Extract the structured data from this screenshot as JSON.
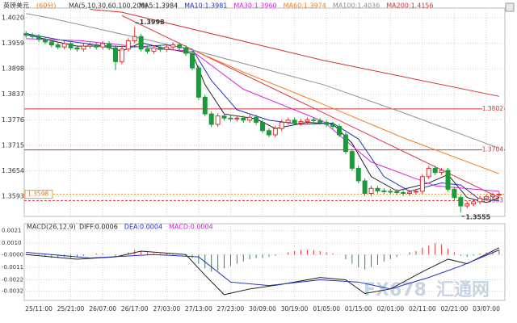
{
  "chart_data": {
    "type": "candlestick",
    "title": "英镑美元",
    "subtitle": "(60分)",
    "indicator": "MA(5,10,30,60,100,200)",
    "categories": [
      null,
      null,
      "25/11:00",
      null,
      null,
      null,
      null,
      "25/21:00",
      null,
      null,
      null,
      null,
      "26/07:00",
      null,
      null,
      null,
      null,
      "26/17:00",
      null,
      null,
      null,
      null,
      "27/03:00",
      null,
      null,
      null,
      null,
      "27/13:00",
      null,
      null,
      null,
      null,
      "27/23:00",
      null,
      null,
      null,
      null,
      "30/09:00",
      null,
      null,
      null,
      null,
      "30/19:00",
      null,
      null,
      null,
      null,
      "01/05:00",
      null,
      null,
      null,
      null,
      "01/15:00",
      null,
      null,
      null,
      null,
      "02/01:00",
      null,
      null,
      null,
      null,
      "02/11:00",
      null,
      null,
      null,
      null,
      "02/21:00",
      null,
      null,
      null,
      null,
      "03/07:00",
      null,
      null
    ],
    "open": [
      1.3982,
      1.3978,
      1.3975,
      1.3968,
      1.3962,
      1.3955,
      1.395,
      1.3958,
      1.3948,
      1.3945,
      1.3952,
      1.3955,
      1.395,
      1.3958,
      1.3948,
      1.3915,
      1.3945,
      1.3965,
      1.3975,
      1.3945,
      1.394,
      1.3948,
      1.3944,
      1.395,
      1.3955,
      1.3948,
      1.3935,
      1.39,
      1.383,
      1.379,
      1.3765,
      1.3785,
      1.378,
      1.3778,
      1.378,
      1.3775,
      1.3782,
      1.377,
      1.375,
      1.374,
      1.3755,
      1.377,
      1.3775,
      1.3768,
      1.3772,
      1.3776,
      1.3774,
      1.377,
      1.3765,
      1.376,
      1.374,
      1.37,
      1.366,
      1.363,
      1.36,
      1.3612,
      1.3606,
      1.3605,
      1.3604,
      1.3602,
      1.36,
      1.3603,
      1.3605,
      1.364,
      1.366,
      1.365,
      1.3655,
      1.361,
      1.359,
      1.357,
      1.3575,
      1.358,
      1.3588,
      1.3592,
      1.3596
    ],
    "high": [
      1.3988,
      1.3984,
      1.3981,
      1.3974,
      1.3968,
      1.3961,
      1.3964,
      1.3964,
      1.3954,
      1.3958,
      1.3961,
      1.3961,
      1.3964,
      1.3964,
      1.3954,
      1.3951,
      1.3971,
      1.3998,
      1.3981,
      1.3951,
      1.3954,
      1.3954,
      1.3956,
      1.3961,
      1.3961,
      1.3954,
      1.3941,
      1.3906,
      1.3836,
      1.3796,
      1.3791,
      1.3791,
      1.3786,
      1.3786,
      1.3786,
      1.3788,
      1.3788,
      1.3776,
      1.3756,
      1.3761,
      1.3776,
      1.3781,
      1.3781,
      1.3778,
      1.3782,
      1.3782,
      1.378,
      1.3776,
      1.3771,
      1.3766,
      1.3746,
      1.3706,
      1.3666,
      1.3636,
      1.3618,
      1.3618,
      1.3612,
      1.3611,
      1.361,
      1.3608,
      1.3609,
      1.3611,
      1.3646,
      1.3666,
      1.3666,
      1.3661,
      1.3661,
      1.3616,
      1.3596,
      1.3581,
      1.3586,
      1.3594,
      1.3598,
      1.3602,
      1.3604
    ],
    "low": [
      1.3972,
      1.3969,
      1.3962,
      1.3956,
      1.3949,
      1.3944,
      1.3944,
      1.3942,
      1.3939,
      1.3939,
      1.3946,
      1.3944,
      1.3944,
      1.3942,
      1.3895,
      1.3909,
      1.3939,
      1.3959,
      1.3939,
      1.3934,
      1.3934,
      1.3938,
      1.3938,
      1.3944,
      1.3942,
      1.3929,
      1.3894,
      1.3824,
      1.3784,
      1.3759,
      1.3759,
      1.3774,
      1.3772,
      1.3772,
      1.3769,
      1.3769,
      1.3764,
      1.3744,
      1.3734,
      1.3734,
      1.3749,
      1.3764,
      1.3762,
      1.3762,
      1.3766,
      1.3768,
      1.3764,
      1.3759,
      1.3754,
      1.3734,
      1.3694,
      1.3654,
      1.3624,
      1.3594,
      1.3594,
      1.36,
      1.3599,
      1.3598,
      1.3596,
      1.3594,
      1.3594,
      1.3597,
      1.3599,
      1.3634,
      1.3644,
      1.3644,
      1.3604,
      1.3584,
      1.3555,
      1.3564,
      1.3569,
      1.3574,
      1.3582,
      1.3586,
      1.359
    ],
    "close": [
      1.3978,
      1.3975,
      1.3968,
      1.3962,
      1.3955,
      1.395,
      1.3958,
      1.3948,
      1.3945,
      1.3952,
      1.3955,
      1.395,
      1.3958,
      1.3948,
      1.3915,
      1.3945,
      1.3965,
      1.3975,
      1.3945,
      1.394,
      1.3948,
      1.3944,
      1.395,
      1.3955,
      1.3948,
      1.3935,
      1.39,
      1.383,
      1.379,
      1.3765,
      1.3785,
      1.378,
      1.3778,
      1.378,
      1.3775,
      1.3782,
      1.377,
      1.375,
      1.374,
      1.3755,
      1.377,
      1.3775,
      1.3768,
      1.3772,
      1.3776,
      1.3774,
      1.377,
      1.3765,
      1.376,
      1.374,
      1.37,
      1.366,
      1.363,
      1.36,
      1.3612,
      1.3606,
      1.3605,
      1.3604,
      1.3602,
      1.36,
      1.3603,
      1.3605,
      1.364,
      1.366,
      1.365,
      1.3655,
      1.361,
      1.359,
      1.357,
      1.3575,
      1.358,
      1.3588,
      1.3592,
      1.3596,
      1.3598
    ],
    "up_color": "#e0302f",
    "down_color": "#1a9a3a",
    "ylim": [
      1.3545,
      1.4043
    ],
    "yticks": [
      {
        "value": 1.402,
        "label": "1.4020"
      },
      1.3959,
      1.3898,
      1.3837,
      1.3776,
      1.3715,
      1.3654,
      1.3593
    ],
    "grid": true,
    "levels": [
      1.3802,
      1.3704,
      1.3583
    ],
    "level_color": "#d83030",
    "last_price": 1.3598,
    "annotations": [
      {
        "x": 17,
        "value": 1.3998
      },
      {
        "x": 68,
        "value": 1.3555
      }
    ],
    "ma_series": [
      {
        "name": "MA5:1.3984",
        "color": "#222222",
        "x": [
          0,
          4,
          8,
          12,
          15,
          18,
          22,
          26,
          28,
          31,
          36,
          39,
          44,
          48,
          51,
          54,
          58,
          63,
          66,
          69,
          72,
          74
        ],
        "values": [
          1.398,
          1.3965,
          1.3952,
          1.3952,
          1.394,
          1.396,
          1.3946,
          1.3935,
          1.386,
          1.379,
          1.3778,
          1.3755,
          1.377,
          1.3766,
          1.372,
          1.364,
          1.3606,
          1.3625,
          1.3645,
          1.359,
          1.3578,
          1.359
        ]
      },
      {
        "name": "MA10:1.3981",
        "color": "#2030c0",
        "x": [
          0,
          6,
          12,
          17,
          22,
          26,
          29,
          33,
          38,
          43,
          48,
          52,
          56,
          60,
          65,
          68,
          71,
          74
        ],
        "values": [
          1.3982,
          1.3965,
          1.3953,
          1.395,
          1.3955,
          1.3945,
          1.387,
          1.38,
          1.3775,
          1.3765,
          1.3768,
          1.373,
          1.364,
          1.3605,
          1.3625,
          1.362,
          1.3585,
          1.3583
        ]
      },
      {
        "name": "MA30:1.3960",
        "color": "#e020e0",
        "x": [
          0,
          8.6,
          21,
          26,
          34,
          46.5,
          54,
          64,
          74
        ],
        "values": [
          1.397,
          1.3965,
          1.3945,
          1.394,
          1.3849,
          1.3772,
          1.3675,
          1.3618,
          1.3605
        ]
      },
      {
        "name": "MA60:1.3974",
        "color": "#f08020",
        "x": [
          25,
          34,
          46.5,
          59,
          74
        ],
        "values": [
          1.395,
          1.389,
          1.3813,
          1.3733,
          1.3647
        ]
      },
      {
        "name": "MA100:1.4036",
        "color": "#909090",
        "x": [
          0,
          3.5,
          26,
          46.5,
          59,
          74
        ],
        "values": [
          1.403,
          1.402,
          1.3943,
          1.386,
          1.3793,
          1.3708
        ]
      },
      {
        "name": "MA200:1.4156",
        "color": "#d83030",
        "x": [
          10,
          15,
          46.5,
          74
        ],
        "values": [
          1.404,
          1.4033,
          1.3918,
          1.3832
        ]
      }
    ],
    "trendlines": [
      {
        "color": "#e03040",
        "x": [
          15,
          74
        ],
        "values": [
          1.4025,
          1.359
        ]
      }
    ],
    "macd": {
      "title": "MACD(26,12,9)",
      "bars_name": "MACD:0.0004",
      "bars_color": "#d020d0",
      "up_color": "#e0302f",
      "down_color": "#1a9a3a",
      "values": [
        0.0001,
        0,
        -0.0001,
        -0.0002,
        -0.0003,
        -0.0003,
        -0.0002,
        -0.0003,
        -0.0002,
        -0.0001,
        0,
        0.0001,
        0.0001,
        0,
        -0.0002,
        0,
        0.0002,
        0.0004,
        0.0003,
        0.0002,
        0.0001,
        0.0001,
        0.0001,
        0.0001,
        0,
        -0.0001,
        -0.0003,
        -0.0008,
        -0.0012,
        -0.0015,
        -0.0014,
        -0.0012,
        -0.001,
        -0.0008,
        -0.0006,
        -0.0004,
        -0.0003,
        -0.0003,
        -0.0002,
        -0.0001,
        0,
        0.0002,
        0.0003,
        0.0004,
        0.0004,
        0.0004,
        0.0003,
        0.0002,
        0.0001,
        0,
        -0.0004,
        -0.0008,
        -0.0011,
        -0.0013,
        -0.0011,
        -0.0009,
        -0.0006,
        -0.0004,
        -0.0002,
        0,
        0.0002,
        0.0003,
        0.0006,
        0.0008,
        0.001,
        0.0009,
        0.0005,
        0.0002,
        -0.0001,
        -0.0002,
        -0.0001,
        0.0001,
        0.0002,
        0.0003,
        0.0004
      ],
      "ylim": [
        -0.004,
        0.0027
      ],
      "yticks": [
        0.0021,
        {
          "value": 0.001,
          "label": "0.0010"
        },
        {
          "value": 0,
          "label": "-0.0000"
        },
        -0.0011,
        -0.0022,
        -0.0032
      ],
      "series": [
        {
          "name": "DIFF:0.0006",
          "color": "#222222",
          "x": [
            0,
            8,
            14,
            18,
            25,
            28,
            31,
            35,
            40,
            46,
            50,
            53,
            57,
            62,
            66,
            69,
            74
          ],
          "values": [
            0,
            -0.0004,
            -0.0002,
            0.0003,
            0,
            -0.0018,
            -0.0035,
            -0.003,
            -0.0026,
            -0.002,
            -0.0022,
            -0.0034,
            -0.003,
            -0.0015,
            -0.0004,
            -0.0008,
            0.0006
          ]
        },
        {
          "name": "DEA:0.0004",
          "color": "#2030c0",
          "x": [
            0,
            10,
            20,
            27,
            32,
            38,
            46,
            52,
            57,
            63,
            68,
            74
          ],
          "values": [
            0.0002,
            -0.0003,
            0,
            -0.0002,
            -0.0024,
            -0.0027,
            -0.0022,
            -0.0024,
            -0.003,
            -0.002,
            -0.001,
            0.0004
          ]
        }
      ]
    },
    "watermark": [
      "FX678",
      "汇通网"
    ]
  }
}
